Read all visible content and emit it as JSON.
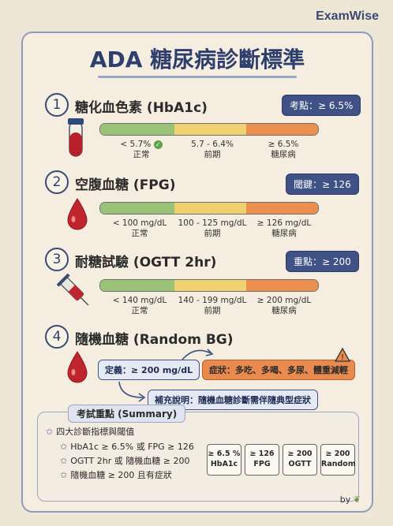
{
  "brand": "ExamWise",
  "title": "ADA 糖尿病診斷標準",
  "sections": [
    {
      "num": "1",
      "title": "糖化血色素 (HbA1c)",
      "badge": "考點：≥ 6.5%",
      "labels": [
        {
          "value": "< 5.7%",
          "desc": "正常"
        },
        {
          "value": "5.7 - 6.4%",
          "desc": "前期"
        },
        {
          "value": "≥ 6.5%",
          "desc": "糖尿病"
        }
      ]
    },
    {
      "num": "2",
      "title": "空腹血糖 (FPG)",
      "badge": "閾鍵：≥ 126",
      "labels": [
        {
          "value": "< 100 mg/dL",
          "desc": "正常"
        },
        {
          "value": "100 - 125 mg/dL",
          "desc": "前期"
        },
        {
          "value": "≥ 126 mg/dL",
          "desc": "糖尿病"
        }
      ]
    },
    {
      "num": "3",
      "title": "耐糖試驗 (OGTT 2hr)",
      "badge": "重點：≥ 200",
      "labels": [
        {
          "value": "< 140 mg/dL",
          "desc": "正常"
        },
        {
          "value": "140 - 199 mg/dL",
          "desc": "前期"
        },
        {
          "value": "≥ 200 mg/dL",
          "desc": "糖尿病"
        }
      ]
    },
    {
      "num": "4",
      "title": "隨機血糖 (Random BG)",
      "definition": "定義：≥ 200 mg/dL",
      "symptoms": "症狀：多吃、多喝、多尿、體重減輕",
      "note": "補充說明：隨機血糖診斷需伴隨典型症狀"
    }
  ],
  "summary": {
    "title": "考試重點 (Summary)",
    "heading": "四大診斷指標與閾值",
    "items": [
      "HbA1c ≥ 6.5% 或 FPG ≥ 126",
      "OGTT 2hr 或 隨機血糖 ≥ 200",
      "隨機血糖 ≥ 200 且有症狀"
    ],
    "cards": [
      {
        "value": "≥ 6.5 %",
        "label": "HbA1c"
      },
      {
        "value": "≥ 126",
        "label": "FPG"
      },
      {
        "value": "≥ 200",
        "label": "OGTT"
      },
      {
        "value": "≥ 200",
        "label": "Random"
      }
    ]
  },
  "footer": "by",
  "colors": {
    "normal": "#9bc378",
    "pre": "#efd26f",
    "diabetes": "#ec8f4e",
    "accent": "#3f5185"
  }
}
